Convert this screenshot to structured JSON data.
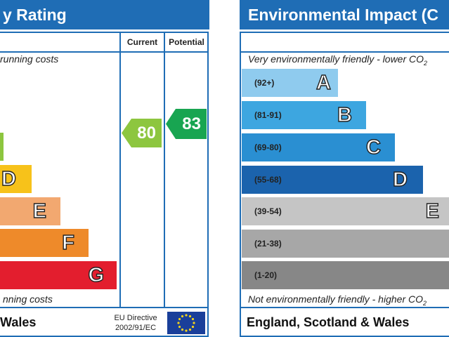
{
  "energy": {
    "title": "y Rating",
    "col_current": "Current",
    "col_potential": "Potential",
    "top_note": "running costs",
    "bottom_note": "nning costs",
    "bands": [
      {
        "letter": "D",
        "color": "#f7c21a"
      },
      {
        "letter": "E",
        "color": "#f2a870"
      },
      {
        "letter": "F",
        "color": "#ee8a2a"
      },
      {
        "letter": "G",
        "color": "#e31e2e"
      }
    ],
    "current": {
      "value": "80",
      "color": "#8dc63f"
    },
    "potential": {
      "value": "83",
      "color": "#18a551"
    },
    "footer_region": "Wales",
    "directive_line1": "EU Directive",
    "directive_line2": "2002/91/EC"
  },
  "environment": {
    "title": "Environmental Impact (C",
    "top_note": "Very environmentally friendly - lower CO",
    "top_note_sub": "2",
    "bottom_note": "Not environmentally friendly - higher CO",
    "bottom_note_sub": "2",
    "bands": [
      {
        "range": "(92+)",
        "letter": "A",
        "color": "#8fcbee"
      },
      {
        "range": "(81-91)",
        "letter": "B",
        "color": "#3da6e0"
      },
      {
        "range": "(69-80)",
        "letter": "C",
        "color": "#2a8fd2"
      },
      {
        "range": "(55-68)",
        "letter": "D",
        "color": "#1b63ad"
      },
      {
        "range": "(39-54)",
        "letter": "E",
        "color": "#c5c5c5"
      },
      {
        "range": "(21-38)",
        "letter": "",
        "color": "#a7a7a7"
      },
      {
        "range": "(1-20)",
        "letter": "",
        "color": "#878787"
      }
    ],
    "footer_region": "England, Scotland & Wales"
  }
}
